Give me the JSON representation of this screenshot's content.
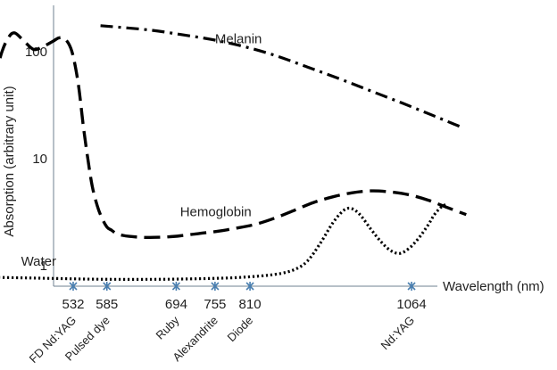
{
  "chart_data": {
    "type": "line",
    "title": "",
    "xlabel": "Wavelength (nm)",
    "ylabel": "Absorption (arbitrary unit)",
    "yscale": "log",
    "xlim": [
      400,
      1250
    ],
    "ylim": [
      0.64,
      300
    ],
    "grid": false,
    "yticks": [
      {
        "value": 1,
        "label": "1"
      },
      {
        "value": 10,
        "label": "10"
      },
      {
        "value": 100,
        "label": "100"
      }
    ],
    "lasers": [
      {
        "wavelength": 532,
        "label": "532",
        "name": "FD Nd:YAG"
      },
      {
        "wavelength": 585,
        "label": "585",
        "name": "Pulsed dye"
      },
      {
        "wavelength": 694,
        "label": "694",
        "name": "Ruby"
      },
      {
        "wavelength": 755,
        "label": "755",
        "name": "Alexandrite"
      },
      {
        "wavelength": 810,
        "label": "810",
        "name": "Diode"
      },
      {
        "wavelength": 1064,
        "label": "1064",
        "name": "Nd:YAG"
      }
    ],
    "series": [
      {
        "name": "Melanin",
        "style": "dash-dot",
        "label_at": [
          755,
          120
        ],
        "x": [
          575,
          650,
          700,
          750,
          800,
          850,
          900,
          950,
          1000,
          1050,
          1100,
          1140
        ],
        "y": [
          175,
          160,
          145,
          130,
          112,
          92,
          72,
          56,
          43,
          33,
          25,
          20
        ]
      },
      {
        "name": "Hemoglobin",
        "style": "dashed",
        "label_at": [
          700,
          2.9
        ],
        "x": [
          400,
          410,
          420,
          430,
          440,
          455,
          470,
          485,
          500,
          510,
          520,
          530,
          540,
          548,
          555,
          562,
          570,
          577,
          585,
          592,
          600,
          610,
          620,
          640,
          660,
          680,
          700,
          730,
          760,
          790,
          820,
          850,
          880,
          910,
          940,
          970,
          1000,
          1030,
          1060,
          1090,
          1120,
          1150
        ],
        "y": [
          33,
          60,
          100,
          135,
          150,
          125,
          105,
          112,
          125,
          135,
          130,
          100,
          50,
          20,
          10,
          5.5,
          3.6,
          2.8,
          2.3,
          2.15,
          2.0,
          1.92,
          1.88,
          1.84,
          1.84,
          1.86,
          1.9,
          2.0,
          2.1,
          2.25,
          2.45,
          2.8,
          3.3,
          3.9,
          4.4,
          4.8,
          5.0,
          4.9,
          4.6,
          4.1,
          3.5,
          3.0
        ]
      },
      {
        "name": "Water",
        "style": "dotted",
        "label_at": [
          450,
          1.0
        ],
        "x": [
          400,
          450,
          500,
          550,
          600,
          650,
          700,
          750,
          800,
          850,
          880,
          900,
          920,
          940,
          955,
          965,
          975,
          985,
          1000,
          1015,
          1030,
          1045,
          1060,
          1075,
          1090,
          1100,
          1110,
          1120
        ],
        "y": [
          0.78,
          0.77,
          0.76,
          0.75,
          0.745,
          0.745,
          0.75,
          0.76,
          0.78,
          0.83,
          0.92,
          1.1,
          1.6,
          2.5,
          3.2,
          3.45,
          3.3,
          2.9,
          2.2,
          1.7,
          1.4,
          1.3,
          1.45,
          1.8,
          2.4,
          3.0,
          3.5,
          3.8
        ]
      }
    ]
  }
}
